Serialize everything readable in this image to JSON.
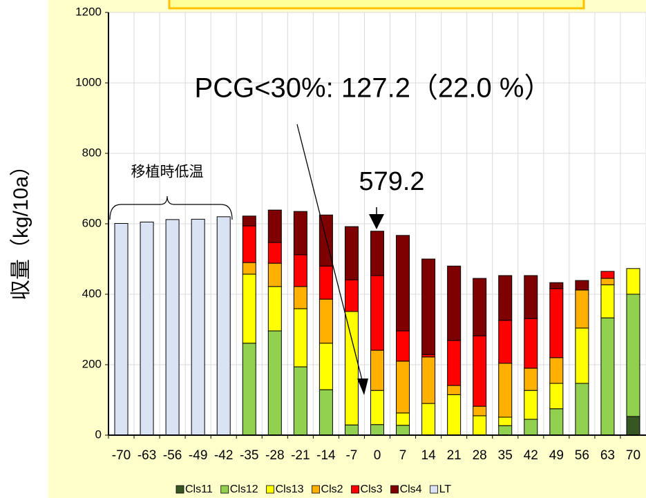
{
  "chart_data": {
    "type": "stacked_bar",
    "ylabel": "収量（kg/10a）",
    "annotations": [
      "PCG<30%: 127.2（22.0 %）",
      "579.2",
      "移植時低温"
    ],
    "categories": [
      "-70",
      "-63",
      "-56",
      "-49",
      "-42",
      "-35",
      "-28",
      "-21",
      "-14",
      "-7",
      "0",
      "7",
      "14",
      "21",
      "28",
      "35",
      "42",
      "49",
      "56",
      "63",
      "70"
    ],
    "series": [
      {
        "name": "Cls11",
        "color": "#375623",
        "values": [
          null,
          null,
          null,
          null,
          null,
          null,
          null,
          null,
          null,
          null,
          null,
          null,
          null,
          null,
          null,
          null,
          null,
          null,
          null,
          null,
          53
        ]
      },
      {
        "name": "Cls12",
        "color": "#92d050",
        "values": [
          null,
          null,
          null,
          null,
          null,
          261,
          296,
          194,
          129,
          29,
          30,
          28,
          null,
          null,
          null,
          27,
          45,
          75,
          147,
          333,
          347
        ]
      },
      {
        "name": "Cls13",
        "color": "#ffff00",
        "values": [
          null,
          null,
          null,
          null,
          null,
          196,
          126,
          165,
          132,
          322,
          97,
          35,
          90,
          115,
          55,
          24,
          82,
          72,
          157,
          94,
          73
        ]
      },
      {
        "name": "Cls2",
        "color": "#ffb000",
        "values": [
          null,
          null,
          null,
          null,
          null,
          33,
          66,
          63,
          125,
          null,
          114,
          147,
          132,
          26,
          27,
          153,
          63,
          73,
          108,
          18,
          null
        ]
      },
      {
        "name": "Cls3",
        "color": "#ff0000",
        "values": [
          null,
          null,
          null,
          null,
          null,
          104,
          59,
          90,
          94,
          90,
          212,
          86,
          7,
          128,
          200,
          122,
          141,
          196,
          null,
          20,
          null
        ]
      },
      {
        "name": "Cls4",
        "color": "#7f0000",
        "values": [
          null,
          null,
          null,
          null,
          null,
          28,
          92,
          123,
          145,
          151,
          126,
          271,
          271,
          211,
          163,
          127,
          122,
          17,
          27,
          null,
          null
        ]
      },
      {
        "name": "LT",
        "color": "#dae3f3",
        "values": [
          601,
          605,
          612,
          613,
          620,
          null,
          null,
          null,
          null,
          null,
          null,
          null,
          null,
          null,
          null,
          null,
          null,
          null,
          null,
          null,
          null
        ]
      }
    ],
    "ylim": [
      0,
      1200
    ],
    "yticks": [
      0,
      200,
      400,
      600,
      800,
      1000,
      1200
    ],
    "grid": true
  }
}
